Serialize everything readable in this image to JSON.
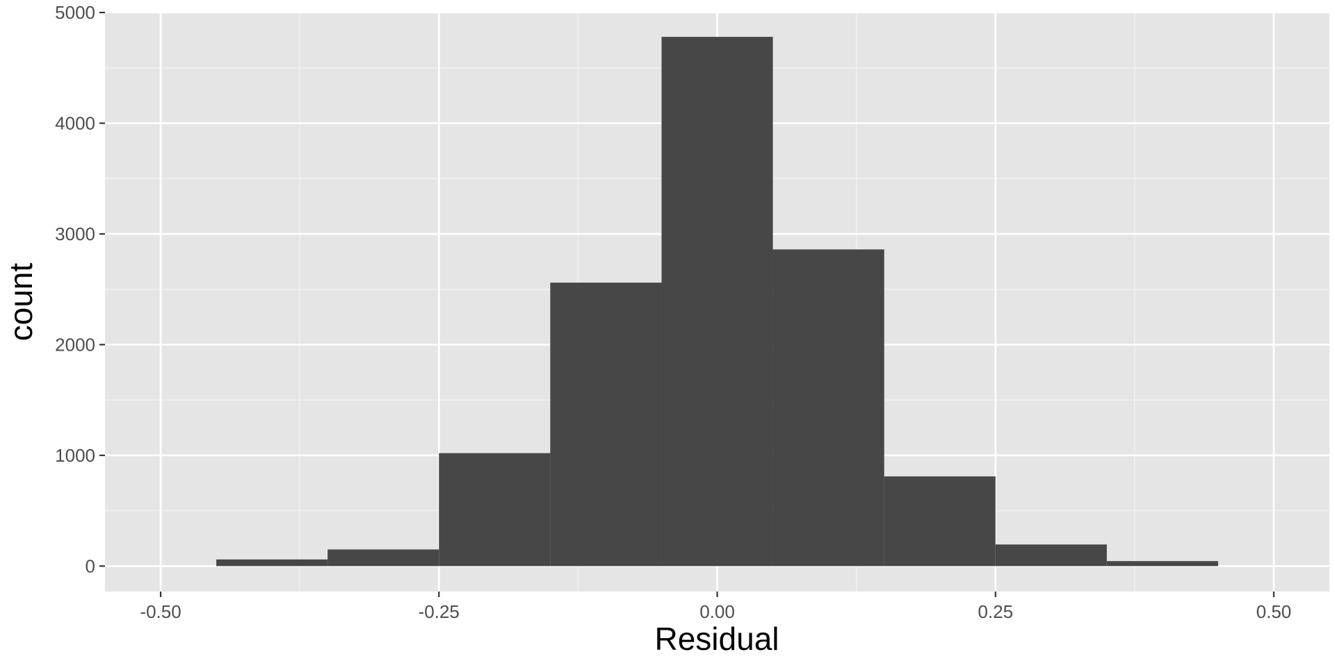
{
  "chart_data": {
    "type": "bar",
    "subtype": "histogram",
    "xlabel": "Residual",
    "ylabel": "count",
    "xlim": [
      -0.55,
      0.55
    ],
    "ylim": [
      -230,
      5000
    ],
    "x_ticks": [
      -0.5,
      -0.25,
      0.0,
      0.25,
      0.5
    ],
    "x_tick_labels": [
      "-0.50",
      "-0.25",
      "0.00",
      "0.25",
      "0.50"
    ],
    "y_ticks": [
      0,
      1000,
      2000,
      3000,
      4000,
      5000
    ],
    "y_tick_labels": [
      "0",
      "1000",
      "2000",
      "3000",
      "4000",
      "5000"
    ],
    "bin_width": 0.1,
    "bins": [
      {
        "start": -0.45,
        "end": -0.35,
        "count": 60
      },
      {
        "start": -0.35,
        "end": -0.25,
        "count": 150
      },
      {
        "start": -0.25,
        "end": -0.15,
        "count": 1020
      },
      {
        "start": -0.15,
        "end": -0.05,
        "count": 2560
      },
      {
        "start": -0.05,
        "end": 0.05,
        "count": 4780
      },
      {
        "start": 0.05,
        "end": 0.15,
        "count": 2860
      },
      {
        "start": 0.15,
        "end": 0.25,
        "count": 810
      },
      {
        "start": 0.25,
        "end": 0.35,
        "count": 195
      },
      {
        "start": 0.35,
        "end": 0.45,
        "count": 45
      }
    ],
    "grid": true,
    "colors": {
      "panel_background": "#e5e5e5",
      "grid_major": "#ffffff",
      "grid_minor": "#f2f2f2",
      "bar_fill": "#474747"
    }
  }
}
